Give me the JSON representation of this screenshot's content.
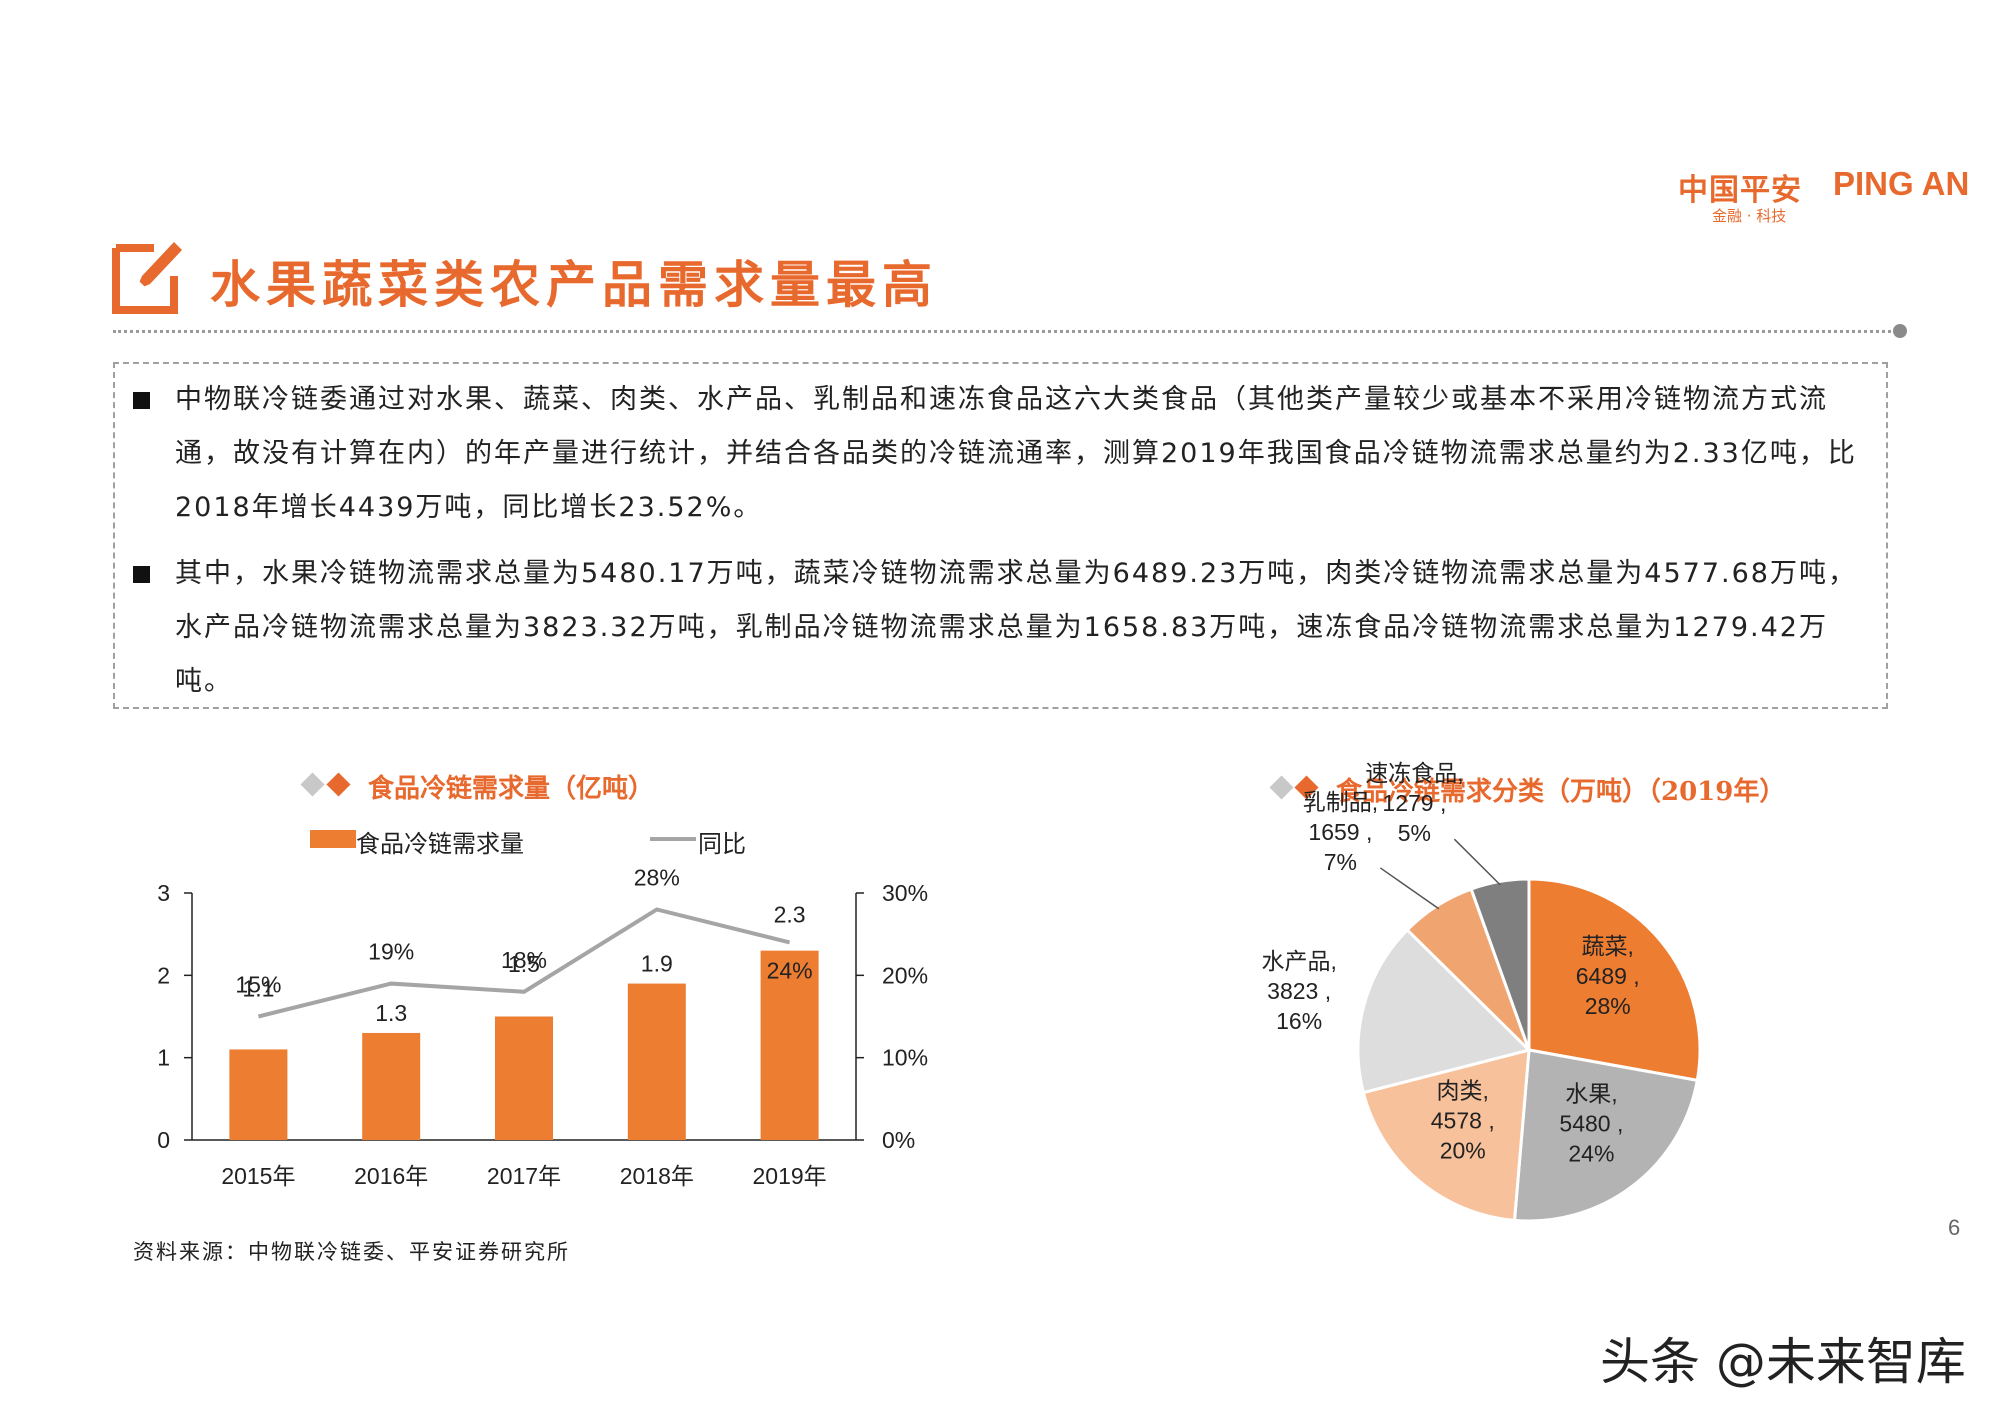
{
  "logo": {
    "cn": "中国平安",
    "en": "PING AN",
    "sub": "金融 · 科技"
  },
  "title": "水果蔬菜类农产品需求量最高",
  "bullets": [
    "中物联冷链委通过对水果、蔬菜、肉类、水产品、乳制品和速冻食品这六大类食品（其他类产量较少或基本不采用冷链物流方式流通，故没有计算在内）的年产量进行统计，并结合各品类的冷链流通率，测算2019年我国食品冷链物流需求总量约为2.33亿吨，比2018年增长4439万吨，同比增长23.52%。",
    "其中，水果冷链物流需求总量为5480.17万吨，蔬菜冷链物流需求总量为6489.23万吨，肉类冷链物流需求总量为4577.68万吨，水产品冷链物流需求总量为3823.32万吨，乳制品冷链物流需求总量为1658.83万吨，速冻食品冷链物流需求总量为1279.42万吨。"
  ],
  "chart_data": [
    {
      "type": "bar",
      "title": "食品冷链需求量（亿吨）",
      "categories": [
        "2015年",
        "2016年",
        "2017年",
        "2018年",
        "2019年"
      ],
      "series": [
        {
          "name": "食品冷链需求量",
          "type": "bar",
          "axis": "left",
          "values": [
            1.1,
            1.3,
            1.5,
            1.9,
            2.3
          ],
          "labels": [
            "1.1",
            "1.3",
            "1.5",
            "1.9",
            "2.3"
          ],
          "color": "#ed7d31"
        },
        {
          "name": "同比",
          "type": "line",
          "axis": "right",
          "values": [
            15,
            19,
            18,
            28,
            24
          ],
          "labels": [
            "15%",
            "19%",
            "18%",
            "28%",
            "24%"
          ],
          "color": "#a5a5a5"
        }
      ],
      "ylim": [
        0,
        3
      ],
      "yticks": [
        "0",
        "1",
        "2",
        "3"
      ],
      "y2lim": [
        0,
        30
      ],
      "y2ticks": [
        "0%",
        "10%",
        "20%",
        "30%"
      ],
      "legend_position": "top"
    },
    {
      "type": "pie",
      "title": "食品冷链需求分类（万吨）（2019年）",
      "slices": [
        {
          "name": "蔬菜",
          "value": 6489,
          "percent": "28%",
          "color": "#ed7d31"
        },
        {
          "name": "水果",
          "value": 5480,
          "percent": "24%",
          "color": "#b3b3b3"
        },
        {
          "name": "肉类",
          "value": 4578,
          "percent": "20%",
          "color": "#f7c19b"
        },
        {
          "name": "水产品",
          "value": 3823,
          "percent": "16%",
          "color": "#dddddd"
        },
        {
          "name": "乳制品",
          "value": 1659,
          "percent": "7%",
          "color": "#f0a570"
        },
        {
          "name": "速冻食品",
          "value": 1279,
          "percent": "5%",
          "color": "#7f7f7f"
        }
      ]
    }
  ],
  "source": "资料来源：中物联冷链委、平安证券研究所",
  "page_number": "6",
  "watermark": "头条 @未来智库"
}
